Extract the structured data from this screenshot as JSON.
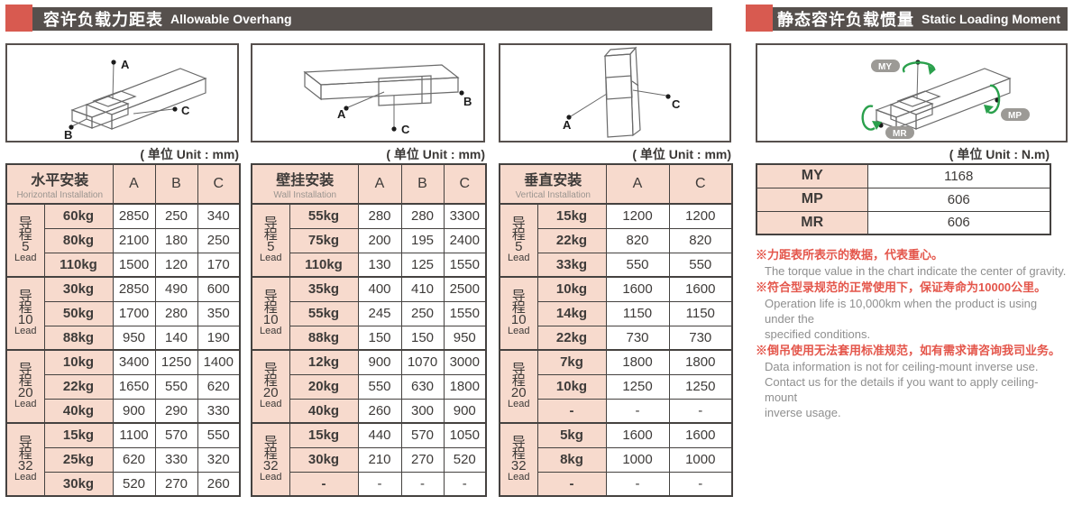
{
  "headers": {
    "left": {
      "zh": "容许负载力距表",
      "en": "Allowable Overhang"
    },
    "right": {
      "zh": "静态容许负载惯量",
      "en": "Static Loading Moment"
    }
  },
  "units": {
    "mm": "( 单位 Unit : mm)",
    "nm": "( 单位 Unit : N.m)"
  },
  "colors": {
    "accent_red": "#d85a50",
    "bar_dark": "#56504d",
    "cell_pink": "#f7dacd",
    "border_dark": "#454240",
    "note_red": "#e4564b",
    "note_gray": "#8f8f8f",
    "moment_green": "#2aa04c",
    "badge_gray": "#9c9a96"
  },
  "diagrams": {
    "horizontal": {
      "labels": {
        "a": "A",
        "b": "B",
        "c": "C"
      }
    },
    "wall": {
      "labels": {
        "a": "A",
        "b": "B",
        "c": "C"
      }
    },
    "vertical": {
      "labels": {
        "a": "A",
        "c": "C"
      }
    },
    "moment": {
      "labels": {
        "my": "MY",
        "mp": "MP",
        "mr": "MR"
      }
    }
  },
  "tables": [
    {
      "title_zh": "水平安装",
      "title_en": "Horizontal Installation",
      "columns": [
        "A",
        "B",
        "C"
      ],
      "groups": [
        {
          "lead": {
            "zh": "导程",
            "num": "5",
            "en": "Lead"
          },
          "rows": [
            {
              "load": "60kg",
              "values": [
                "2850",
                "250",
                "340"
              ]
            },
            {
              "load": "80kg",
              "values": [
                "2100",
                "180",
                "250"
              ]
            },
            {
              "load": "110kg",
              "values": [
                "1500",
                "120",
                "170"
              ]
            }
          ]
        },
        {
          "lead": {
            "zh": "导程",
            "num": "10",
            "en": "Lead"
          },
          "rows": [
            {
              "load": "30kg",
              "values": [
                "2850",
                "490",
                "600"
              ]
            },
            {
              "load": "50kg",
              "values": [
                "1700",
                "280",
                "350"
              ]
            },
            {
              "load": "88kg",
              "values": [
                "950",
                "140",
                "190"
              ]
            }
          ]
        },
        {
          "lead": {
            "zh": "导程",
            "num": "20",
            "en": "Lead"
          },
          "rows": [
            {
              "load": "10kg",
              "values": [
                "3400",
                "1250",
                "1400"
              ]
            },
            {
              "load": "22kg",
              "values": [
                "1650",
                "550",
                "620"
              ]
            },
            {
              "load": "40kg",
              "values": [
                "900",
                "290",
                "330"
              ]
            }
          ]
        },
        {
          "lead": {
            "zh": "导程",
            "num": "32",
            "en": "Lead"
          },
          "rows": [
            {
              "load": "15kg",
              "values": [
                "1100",
                "570",
                "550"
              ]
            },
            {
              "load": "25kg",
              "values": [
                "620",
                "330",
                "320"
              ]
            },
            {
              "load": "30kg",
              "values": [
                "520",
                "270",
                "260"
              ]
            }
          ]
        }
      ]
    },
    {
      "title_zh": "壁挂安装",
      "title_en": "Wall Installation",
      "columns": [
        "A",
        "B",
        "C"
      ],
      "groups": [
        {
          "lead": {
            "zh": "导程",
            "num": "5",
            "en": "Lead"
          },
          "rows": [
            {
              "load": "55kg",
              "values": [
                "280",
                "280",
                "3300"
              ]
            },
            {
              "load": "75kg",
              "values": [
                "200",
                "195",
                "2400"
              ]
            },
            {
              "load": "110kg",
              "values": [
                "130",
                "125",
                "1550"
              ]
            }
          ]
        },
        {
          "lead": {
            "zh": "导程",
            "num": "10",
            "en": "Lead"
          },
          "rows": [
            {
              "load": "35kg",
              "values": [
                "400",
                "410",
                "2500"
              ]
            },
            {
              "load": "55kg",
              "values": [
                "245",
                "250",
                "1550"
              ]
            },
            {
              "load": "88kg",
              "values": [
                "150",
                "150",
                "950"
              ]
            }
          ]
        },
        {
          "lead": {
            "zh": "导程",
            "num": "20",
            "en": "Lead"
          },
          "rows": [
            {
              "load": "12kg",
              "values": [
                "900",
                "1070",
                "3000"
              ]
            },
            {
              "load": "20kg",
              "values": [
                "550",
                "630",
                "1800"
              ]
            },
            {
              "load": "40kg",
              "values": [
                "260",
                "300",
                "900"
              ]
            }
          ]
        },
        {
          "lead": {
            "zh": "导程",
            "num": "32",
            "en": "Lead"
          },
          "rows": [
            {
              "load": "15kg",
              "values": [
                "440",
                "570",
                "1050"
              ]
            },
            {
              "load": "30kg",
              "values": [
                "210",
                "270",
                "520"
              ]
            },
            {
              "load": "-",
              "values": [
                "-",
                "-",
                "-"
              ]
            }
          ]
        }
      ]
    },
    {
      "title_zh": "垂直安装",
      "title_en": "Vertical Installation",
      "columns": [
        "A",
        "C"
      ],
      "groups": [
        {
          "lead": {
            "zh": "导程",
            "num": "5",
            "en": "Lead"
          },
          "rows": [
            {
              "load": "15kg",
              "values": [
                "1200",
                "1200"
              ]
            },
            {
              "load": "22kg",
              "values": [
                "820",
                "820"
              ]
            },
            {
              "load": "33kg",
              "values": [
                "550",
                "550"
              ]
            }
          ]
        },
        {
          "lead": {
            "zh": "导程",
            "num": "10",
            "en": "Lead"
          },
          "rows": [
            {
              "load": "10kg",
              "values": [
                "1600",
                "1600"
              ]
            },
            {
              "load": "14kg",
              "values": [
                "1150",
                "1150"
              ]
            },
            {
              "load": "22kg",
              "values": [
                "730",
                "730"
              ]
            }
          ]
        },
        {
          "lead": {
            "zh": "导程",
            "num": "20",
            "en": "Lead"
          },
          "rows": [
            {
              "load": "7kg",
              "values": [
                "1800",
                "1800"
              ]
            },
            {
              "load": "10kg",
              "values": [
                "1250",
                "1250"
              ]
            },
            {
              "load": "-",
              "values": [
                "-",
                "-"
              ]
            }
          ]
        },
        {
          "lead": {
            "zh": "导程",
            "num": "32",
            "en": "Lead"
          },
          "rows": [
            {
              "load": "5kg",
              "values": [
                "1600",
                "1600"
              ]
            },
            {
              "load": "8kg",
              "values": [
                "1000",
                "1000"
              ]
            },
            {
              "load": "-",
              "values": [
                "-",
                "-"
              ]
            }
          ]
        }
      ]
    }
  ],
  "moment_table": {
    "rows": [
      {
        "label": "MY",
        "value": "1168"
      },
      {
        "label": "MP",
        "value": "606"
      },
      {
        "label": "MR",
        "value": "606"
      }
    ]
  },
  "notes": [
    {
      "zh": "※力距表所表示的数据，代表重心。",
      "en": [
        "The torque value in the chart indicate the center of gravity."
      ]
    },
    {
      "zh": "※符合型录规范的正常使用下，保证寿命为10000公里。",
      "en": [
        "Operation life is 10,000km when the product is using under the",
        "specified conditions."
      ]
    },
    {
      "zh": "※倒吊使用无法套用标准规范，如有需求请咨询我司业务。",
      "en": [
        "Data information is not for ceiling-mount inverse use.",
        "Contact us for the details if you want to apply ceiling-mount",
        "inverse usage."
      ]
    }
  ]
}
